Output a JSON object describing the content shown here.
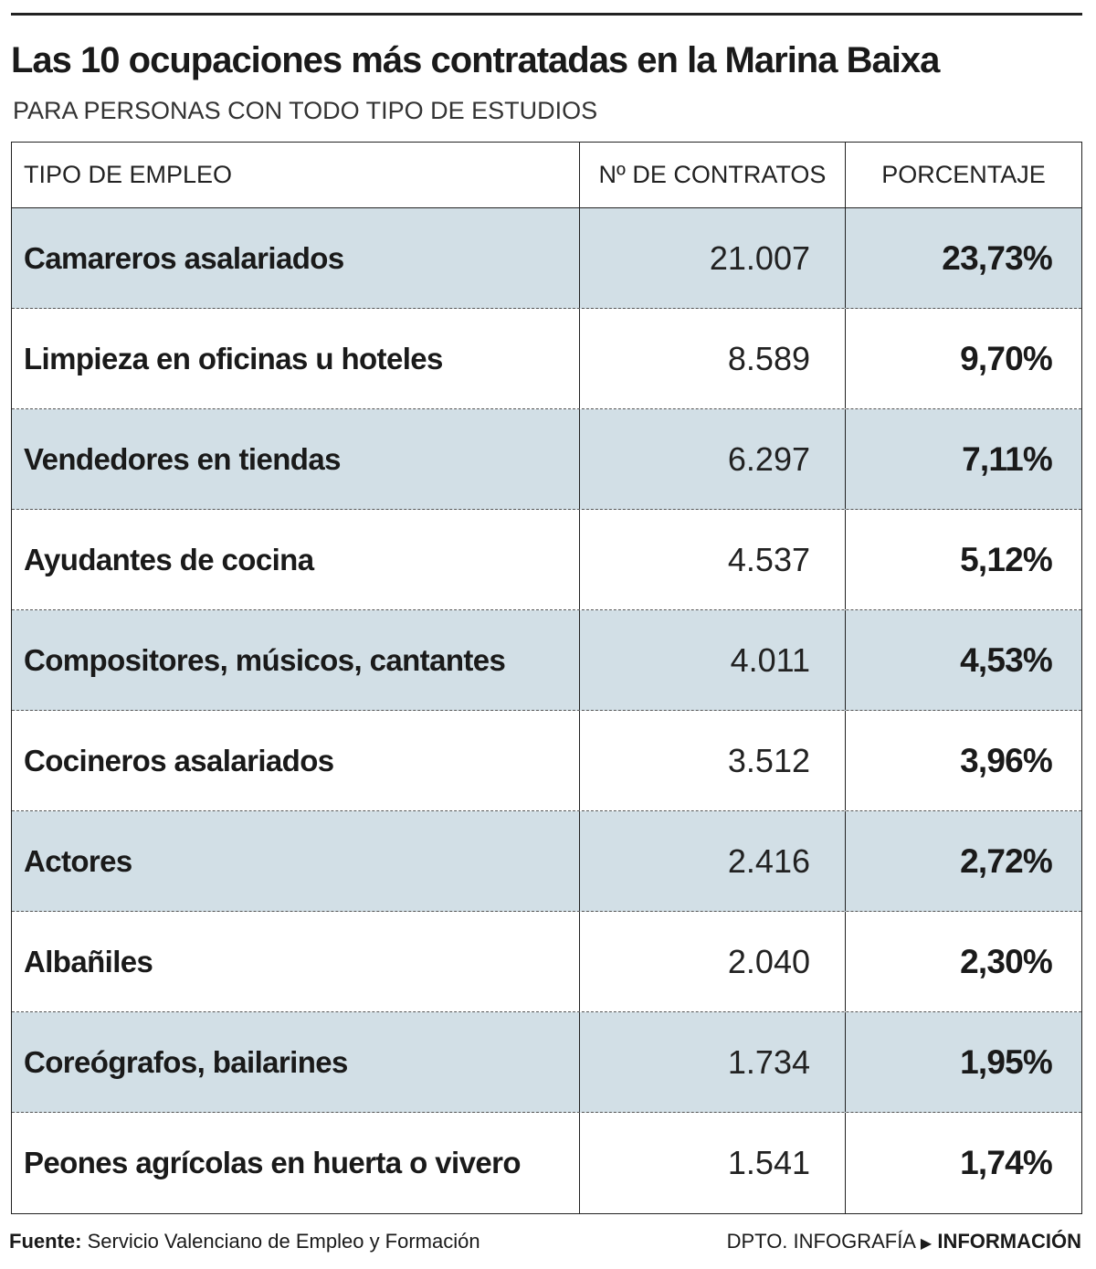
{
  "header": {
    "title": "Las 10 ocupaciones más contratadas en la Marina Baixa",
    "subtitle": "PARA PERSONAS CON TODO TIPO DE ESTUDIOS"
  },
  "table": {
    "columns": [
      "TIPO DE EMPLEO",
      "Nº DE CONTRATOS",
      "PORCENTAJE"
    ],
    "rows": [
      [
        "Camareros asalariados",
        "21.007",
        "23,73%"
      ],
      [
        "Limpieza en oficinas u hoteles",
        "8.589",
        "9,70%"
      ],
      [
        "Vendedores en tiendas",
        "6.297",
        "7,11%"
      ],
      [
        "Ayudantes de cocina",
        "4.537",
        "5,12%"
      ],
      [
        "Compositores, músicos, cantantes",
        "4.011",
        "4,53%"
      ],
      [
        "Cocineros asalariados",
        "3.512",
        "3,96%"
      ],
      [
        "Actores",
        "2.416",
        "2,72%"
      ],
      [
        "Albañiles",
        "2.040",
        "2,30%"
      ],
      [
        "Coreógrafos, bailarines",
        "1.734",
        "1,95%"
      ],
      [
        "Peones agrícolas en huerta o vivero",
        "1.541",
        "1,74%"
      ]
    ]
  },
  "footer": {
    "source_label": "Fuente:",
    "source": "Servicio Valenciano de Empleo y Formación",
    "credit": "DPTO. INFOGRAFÍA",
    "brand": "INFORMACIÓN"
  }
}
